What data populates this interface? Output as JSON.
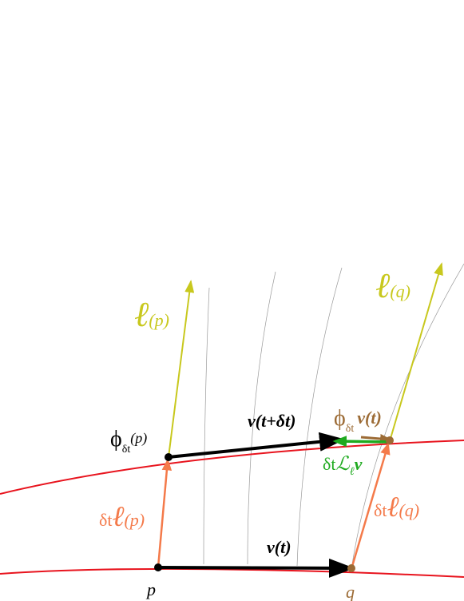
{
  "labels": {
    "ell_p": {
      "main": "ℓ",
      "arg": "(p)"
    },
    "ell_q": {
      "main": "ℓ",
      "arg": "(q)"
    },
    "phi_p": {
      "main": "ϕ",
      "sub": "δt",
      "arg": "(p)"
    },
    "v_t_dt": {
      "text": "v(t+δt)"
    },
    "phi_v": {
      "main": "ϕ",
      "sub": "δt",
      "arg": "v(t)"
    },
    "lie": {
      "pre": "δt",
      "main": "ℒ",
      "sub": "ℓ",
      "post": "v"
    },
    "dt_ell_p": {
      "pre": "δt",
      "main": "ℓ",
      "arg": "(p)"
    },
    "dt_ell_q": {
      "pre": "δt",
      "main": "ℓ",
      "arg": "(q)"
    },
    "v_t": {
      "text": "v(t)"
    },
    "p": {
      "text": "p"
    },
    "q": {
      "text": "q"
    }
  }
}
